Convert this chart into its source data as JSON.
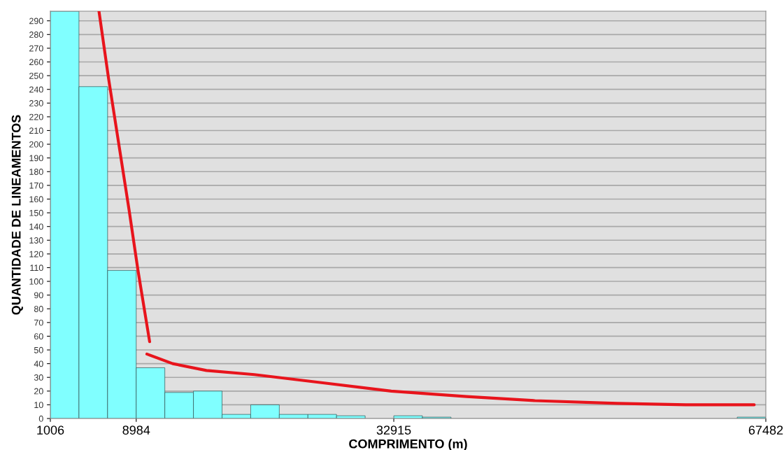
{
  "chart_data": {
    "type": "histogram",
    "xlabel": "COMPRIMENTO (m)",
    "ylabel": "QUANTIDADE DE LINEAMENTOS",
    "xlim": [
      1006,
      67482
    ],
    "xticks": [
      1006,
      8984,
      32915,
      67482
    ],
    "ylim": [
      0,
      297
    ],
    "yticks": [
      0,
      10,
      20,
      30,
      40,
      50,
      60,
      70,
      80,
      90,
      100,
      110,
      120,
      130,
      140,
      150,
      160,
      170,
      180,
      190,
      200,
      210,
      220,
      230,
      240,
      250,
      260,
      270,
      280,
      290
    ],
    "grid": "y",
    "series": [
      {
        "color": "#80ffff",
        "bins": [
          1006,
          3665,
          6324,
          8984,
          11642,
          14301,
          16960,
          19619,
          22278,
          24937,
          27596,
          30255,
          32915,
          35574,
          38233,
          40892,
          43551,
          46210,
          48869,
          51528,
          54187,
          56846,
          59505,
          62164,
          64823,
          67482
        ],
        "values": [
          297,
          242,
          108,
          37,
          19,
          20,
          3,
          10,
          3,
          3,
          2,
          0,
          2,
          1,
          0,
          0,
          0,
          0,
          0,
          0,
          0,
          0,
          0,
          0,
          1
        ]
      },
      {
        "type": "line",
        "color": "#e8141c",
        "x": [
          5523,
          6413,
          8322,
          9148,
          10230
        ],
        "values": [
          297,
          248,
          152,
          108,
          56
        ]
      },
      {
        "type": "line",
        "color": "#e8141c",
        "x": [
          9975,
          12375,
          15510,
          19963,
          26325,
          32686,
          39684,
          46046,
          53680,
          60041,
          66402
        ],
        "values": [
          47,
          40,
          35,
          32,
          26,
          20,
          16,
          13,
          11,
          10,
          10
        ]
      }
    ]
  }
}
